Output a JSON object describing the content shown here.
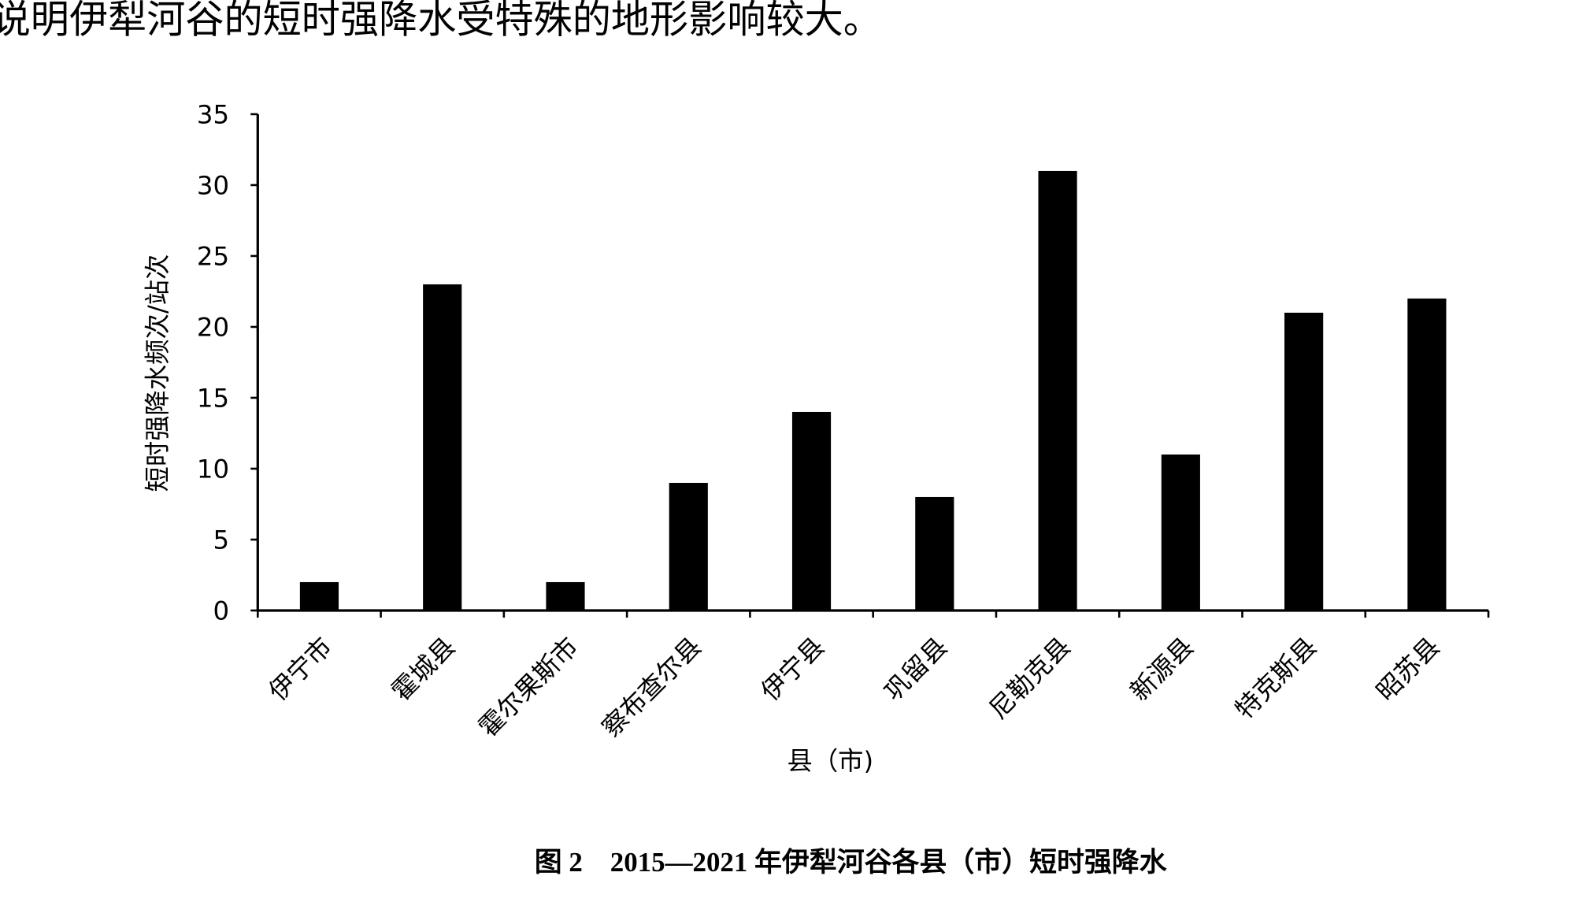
{
  "paragraph": "说明伊犁河谷的短时强降水受特殊的地形影响较大。",
  "chart_data": {
    "type": "bar",
    "title": "图 2　2015—2021 年伊犁河谷各县（市）短时强降水",
    "y_label": "短时强降水频次/站次",
    "x_label": "县（市)",
    "categories": [
      "伊宁市",
      "霍城县",
      "霍尔果斯市",
      "察布查尔县",
      "伊宁县",
      "巩留县",
      "尼勒克县",
      "新源县",
      "特克斯县",
      "昭苏县"
    ],
    "values": [
      2,
      23,
      2,
      9,
      14,
      8,
      31,
      11,
      21,
      22
    ],
    "color": "#000000",
    "ylim": [
      0,
      35
    ],
    "yticks": [
      0,
      5,
      10,
      15,
      20,
      25,
      30,
      35
    ],
    "grid": false
  }
}
